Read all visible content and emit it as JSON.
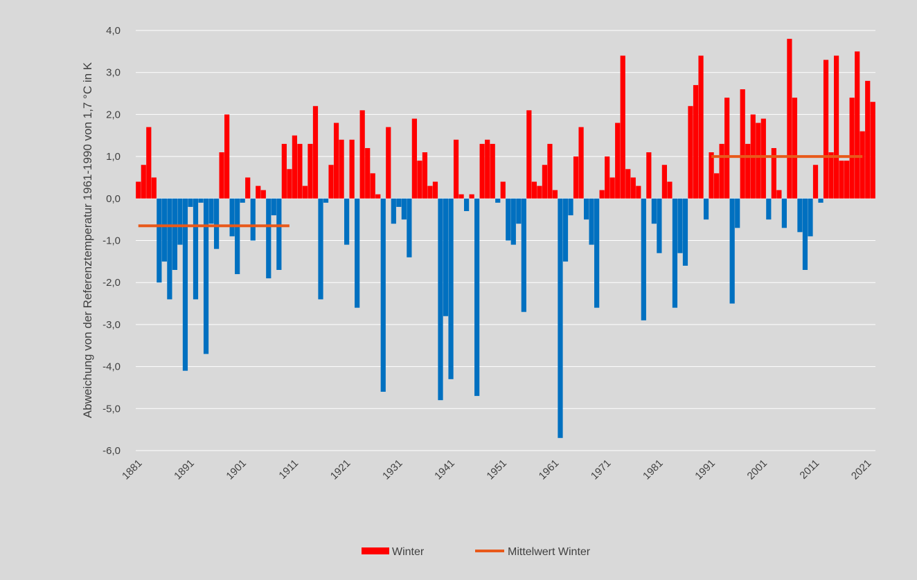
{
  "chart_data": {
    "type": "bar",
    "title": "",
    "ylabel": "Abweichung von der  Referenztemperatur 1961-1990 von 1,7 °C in K",
    "xlabel": "",
    "ylim": [
      -6,
      4
    ],
    "yticks": [
      "4,0",
      "3,0",
      "2,0",
      "1,0",
      "0,0",
      "-1,0",
      "-2,0",
      "-3,0",
      "-4,0",
      "-5,0",
      "-6,0"
    ],
    "xticks": [
      "1881",
      "1891",
      "1901",
      "1911",
      "1921",
      "1931",
      "1941",
      "1951",
      "1961",
      "1971",
      "1981",
      "1991",
      "2001",
      "2011",
      "2021"
    ],
    "grid": true,
    "colors": {
      "positive": "#ff0000",
      "negative": "#0070c0",
      "mean": "#e8591a",
      "grid": "#ffffff",
      "background": "#d9d9d9"
    },
    "series": [
      {
        "name": "Winter",
        "x_start": 1881,
        "values": [
          0.4,
          0.8,
          1.7,
          0.5,
          -2.0,
          -1.5,
          -2.4,
          -1.7,
          -1.1,
          -4.1,
          -0.2,
          -2.4,
          -0.1,
          -3.7,
          -0.6,
          -1.2,
          1.1,
          2.0,
          -0.9,
          -1.8,
          -0.1,
          0.5,
          -1.0,
          0.3,
          0.2,
          -1.9,
          -0.4,
          -1.7,
          1.3,
          0.7,
          1.5,
          1.3,
          0.3,
          1.3,
          2.2,
          -2.4,
          -0.1,
          0.8,
          1.8,
          1.4,
          -1.1,
          1.4,
          -2.6,
          2.1,
          1.2,
          0.6,
          0.1,
          -4.6,
          1.7,
          -0.6,
          -0.2,
          -0.5,
          -1.4,
          1.9,
          0.9,
          1.1,
          0.3,
          0.4,
          -4.8,
          -2.8,
          -4.3,
          1.4,
          0.1,
          -0.3,
          0.1,
          -4.7,
          1.3,
          1.4,
          1.3,
          -0.1,
          0.4,
          -1.0,
          -1.1,
          -0.6,
          -2.7,
          2.1,
          0.4,
          0.3,
          0.8,
          1.3,
          0.2,
          -5.7,
          -1.5,
          -0.4,
          1.0,
          1.7,
          -0.5,
          -1.1,
          -2.6,
          0.2,
          1.0,
          0.5,
          1.8,
          3.4,
          0.7,
          0.5,
          0.3,
          -2.9,
          1.1,
          -0.6,
          -1.3,
          0.8,
          0.4,
          -2.6,
          -1.3,
          -1.6,
          2.2,
          2.7,
          3.4,
          -0.5,
          1.1,
          0.6,
          1.3,
          2.4,
          -2.5,
          -0.7,
          2.6,
          1.3,
          2.0,
          1.8,
          1.9,
          -0.5,
          1.2,
          0.2,
          -0.7,
          3.8,
          2.4,
          -0.8,
          -1.7,
          -0.9,
          0.8,
          -0.1,
          3.3,
          1.1,
          3.4,
          0.9,
          0.9,
          2.4,
          3.5,
          1.6,
          2.8,
          2.3
        ]
      },
      {
        "name": "Mittelwert Winter",
        "type": "line",
        "segments": [
          {
            "x_from": 1881,
            "x_to": 1910,
            "value": -0.65
          },
          {
            "x_from": 1991,
            "x_to": 2020,
            "value": 1.0
          }
        ]
      }
    ],
    "legend": {
      "position": "bottom",
      "items": [
        "Winter",
        "Mittelwert Winter"
      ]
    }
  }
}
